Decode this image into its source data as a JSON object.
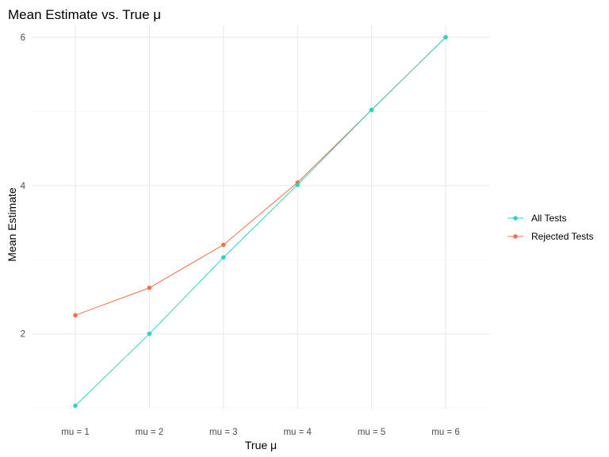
{
  "chart_data": {
    "type": "line",
    "title": "Mean Estimate vs. True μ",
    "xlabel": "True μ",
    "ylabel": "Mean Estimate",
    "categories": [
      "mu = 1",
      "mu = 2",
      "mu = 3",
      "mu = 4",
      "mu = 5",
      "mu = 6"
    ],
    "ylim": [
      0.98,
      6.16
    ],
    "yticks": [
      2,
      4,
      6
    ],
    "grid": true,
    "legend_position": "right",
    "series": [
      {
        "name": "All Tests",
        "color": "#2fd3bf",
        "values": [
          1.03,
          2.0,
          3.03,
          4.01,
          5.02,
          6.0
        ]
      },
      {
        "name": "Rejected Tests",
        "color": "#f27147",
        "values": [
          2.25,
          2.62,
          3.2,
          4.04,
          5.02,
          6.0
        ]
      }
    ]
  }
}
